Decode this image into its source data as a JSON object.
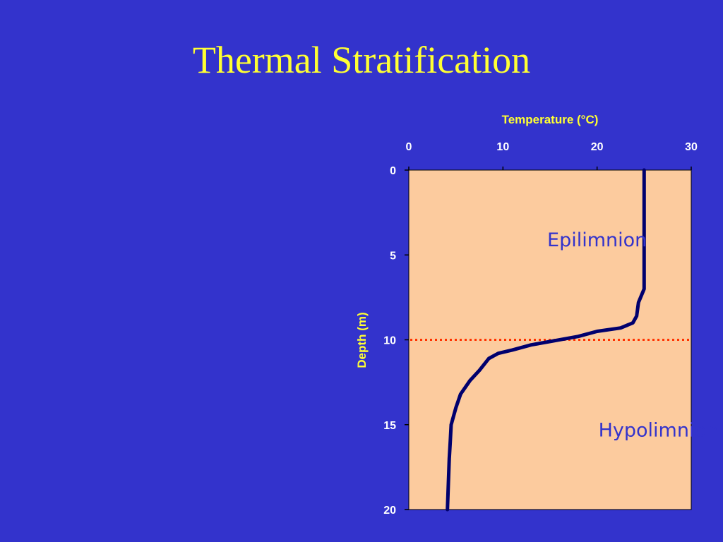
{
  "slide": {
    "title": "Thermal Stratification"
  },
  "colors": {
    "background": "#3333CC",
    "title": "#FFFF33",
    "plot_area": "#FCCB9E",
    "series_line": "#00006E",
    "thermocline_line": "#FF3300",
    "tick_labels": "#FFFFFF",
    "zone_labels": "#3333CC"
  },
  "chart_data": {
    "type": "line",
    "xlabel": "Temperature (°C)",
    "ylabel": "Depth (m)",
    "x_axis_position": "top",
    "y_axis_inverted": true,
    "xlim": [
      0,
      30
    ],
    "ylim": [
      0,
      20
    ],
    "x_ticks": [
      "0",
      "10",
      "20",
      "30"
    ],
    "y_ticks": [
      "0",
      "5",
      "10",
      "15",
      "20"
    ],
    "grid": false,
    "legend": "none",
    "series": [
      {
        "temperature": [
          25,
          25,
          25,
          25,
          25,
          24.7,
          24.4,
          24.2,
          23.8,
          22.5,
          20,
          18,
          15,
          13,
          11,
          9.5,
          8.5,
          7.5,
          6.5,
          5.5,
          5,
          4.5,
          4.4,
          4.3,
          4.2,
          4.1
        ],
        "depth": [
          0,
          2,
          4,
          6,
          7,
          7.4,
          7.8,
          8.6,
          9.0,
          9.3,
          9.5,
          9.8,
          10.1,
          10.3,
          10.6,
          10.8,
          11.1,
          11.8,
          12.4,
          13.2,
          14.0,
          15.0,
          16.0,
          17.0,
          18.5,
          20.0
        ]
      }
    ],
    "reference_lines": [
      {
        "orientation": "horizontal",
        "depth": 10,
        "style": "dotted"
      }
    ],
    "annotations": [
      {
        "id": "epilimnion",
        "text": "Epilimnion",
        "temperature": 20,
        "depth": 4.5
      },
      {
        "id": "hypolimnion",
        "text": "Hypolimnion",
        "temperature": 26.5,
        "depth": 15.7
      }
    ]
  }
}
